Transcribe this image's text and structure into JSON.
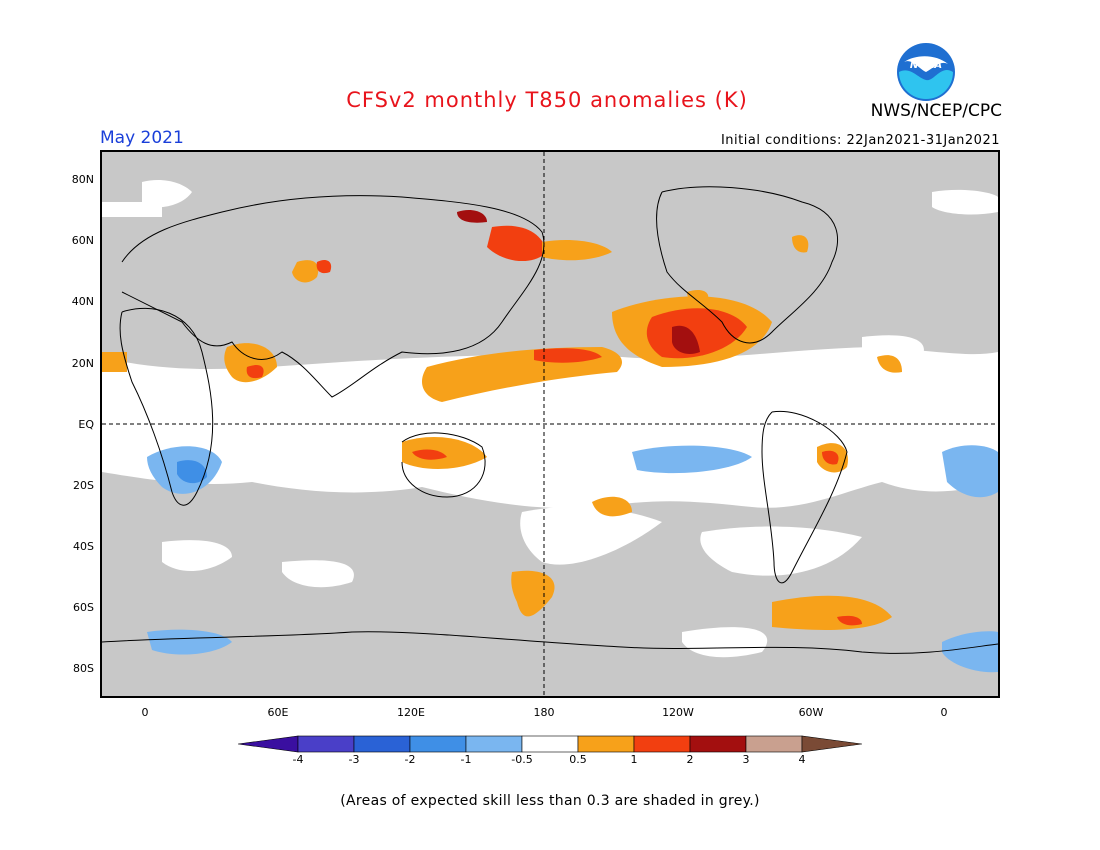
{
  "header": {
    "title": "CFSv2 monthly T850 anomalies (K)",
    "organization": "NWS/NCEP/CPC",
    "logo_text": "NOAA",
    "valid_month": "May 2021",
    "initial_conditions": "Initial conditions: 22Jan2021-31Jan2021"
  },
  "map": {
    "latitude_labels": [
      "80N",
      "60N",
      "40N",
      "20N",
      "EQ",
      "20S",
      "40S",
      "60S",
      "80S"
    ],
    "longitude_labels": [
      "0",
      "60E",
      "120E",
      "180",
      "120W",
      "60W",
      "0"
    ],
    "background_grey": "#c8c8c8",
    "reference_lines": [
      "equator",
      "dateline"
    ]
  },
  "legend": {
    "tick_labels": [
      "-4",
      "-3",
      "-2",
      "-1",
      "-0.5",
      "0.5",
      "1",
      "2",
      "3",
      "4"
    ],
    "colors": {
      "below_-4": "#3a0fa0",
      "-4_-3": "#4a3fc8",
      "-3_-2": "#2a62d6",
      "-2_-1": "#3f8fe6",
      "-1_-0.5": "#7ab6f0",
      "-0.5_0.5": "#ffffff",
      "0.5_1": "#f7a11a",
      "1_2": "#f23f10",
      "2_3": "#a30f0f",
      "3_4": "#c9a08f",
      "above_4": "#7a4a35"
    },
    "note": "(Areas of expected skill less than 0.3 are shaded in grey.)"
  }
}
